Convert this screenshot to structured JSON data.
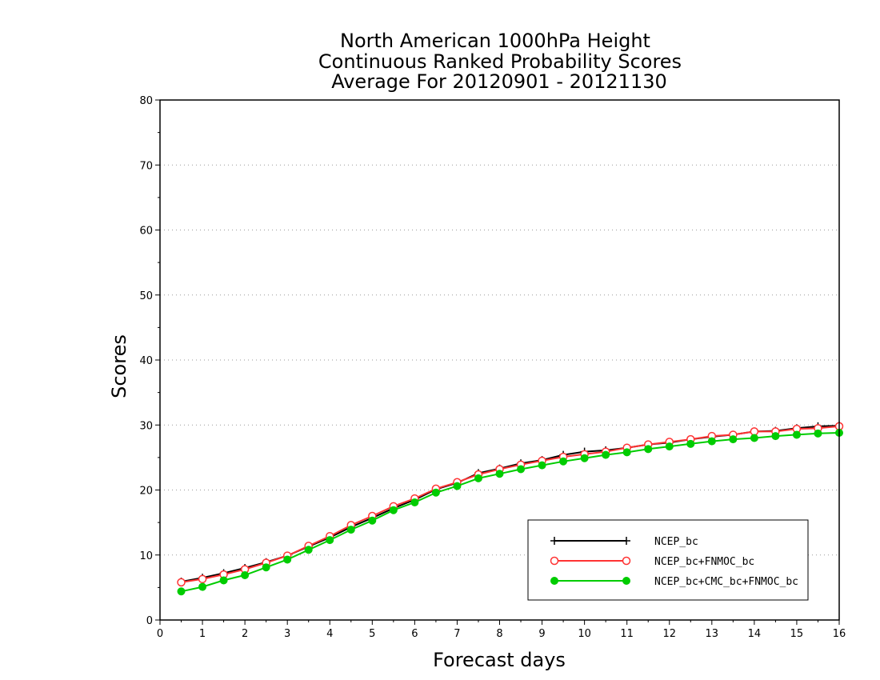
{
  "chart_data": {
    "type": "line",
    "title_lines": [
      "North American 1000hPa Height",
      "Continuous Ranked Probability Scores",
      "Average For 20120901 - 20121130"
    ],
    "xlabel": "Forecast days",
    "ylabel": "Scores",
    "xlim": [
      0,
      16
    ],
    "ylim": [
      0,
      80
    ],
    "x_ticks": [
      "0",
      "1",
      "2",
      "3",
      "4",
      "5",
      "6",
      "7",
      "8",
      "9",
      "10",
      "11",
      "12",
      "13",
      "14",
      "15",
      "16"
    ],
    "y_ticks": [
      "0",
      "10",
      "20",
      "30",
      "40",
      "50",
      "60",
      "70",
      "80"
    ],
    "grid": "horizontal dotted",
    "legend_position": "bottom-right",
    "x": [
      0.5,
      1,
      1.5,
      2,
      2.5,
      3,
      3.5,
      4,
      4.5,
      5,
      5.5,
      6,
      6.5,
      7,
      7.5,
      8,
      8.5,
      9,
      9.5,
      10,
      10.5,
      11,
      11.5,
      12,
      12.5,
      13,
      13.5,
      14,
      14.5,
      15,
      15.5,
      16
    ],
    "series": [
      {
        "name": "NCEP_bc",
        "color": "#000000",
        "marker": "plus",
        "values": [
          5.9,
          6.5,
          7.2,
          8.0,
          8.9,
          9.9,
          11.3,
          12.7,
          14.3,
          15.7,
          17.2,
          18.5,
          20.1,
          21.1,
          22.6,
          23.3,
          24.1,
          24.6,
          25.4,
          25.9,
          26.1,
          26.5,
          27.0,
          27.3,
          27.8,
          28.2,
          28.5,
          29.0,
          29.1,
          29.5,
          29.8,
          29.9
        ]
      },
      {
        "name": "NCEP_bc+FNMOC_bc",
        "color": "#ff3333",
        "marker": "open-circle",
        "values": [
          5.8,
          6.3,
          7.0,
          7.8,
          8.8,
          9.9,
          11.4,
          12.9,
          14.6,
          16.0,
          17.5,
          18.7,
          20.2,
          21.2,
          22.4,
          23.2,
          23.9,
          24.5,
          25.1,
          25.5,
          25.9,
          26.5,
          27.0,
          27.4,
          27.8,
          28.3,
          28.5,
          29.0,
          29.0,
          29.4,
          29.5,
          29.8
        ]
      },
      {
        "name": "NCEP_bc+CMC_bc+FNMOC_bc",
        "color": "#00cc00",
        "marker": "filled-circle",
        "values": [
          4.4,
          5.1,
          6.1,
          6.9,
          8.1,
          9.3,
          10.8,
          12.3,
          13.9,
          15.3,
          16.9,
          18.1,
          19.6,
          20.6,
          21.8,
          22.5,
          23.2,
          23.8,
          24.4,
          24.9,
          25.4,
          25.8,
          26.3,
          26.7,
          27.1,
          27.5,
          27.8,
          28.0,
          28.3,
          28.5,
          28.7,
          28.8
        ]
      }
    ]
  }
}
